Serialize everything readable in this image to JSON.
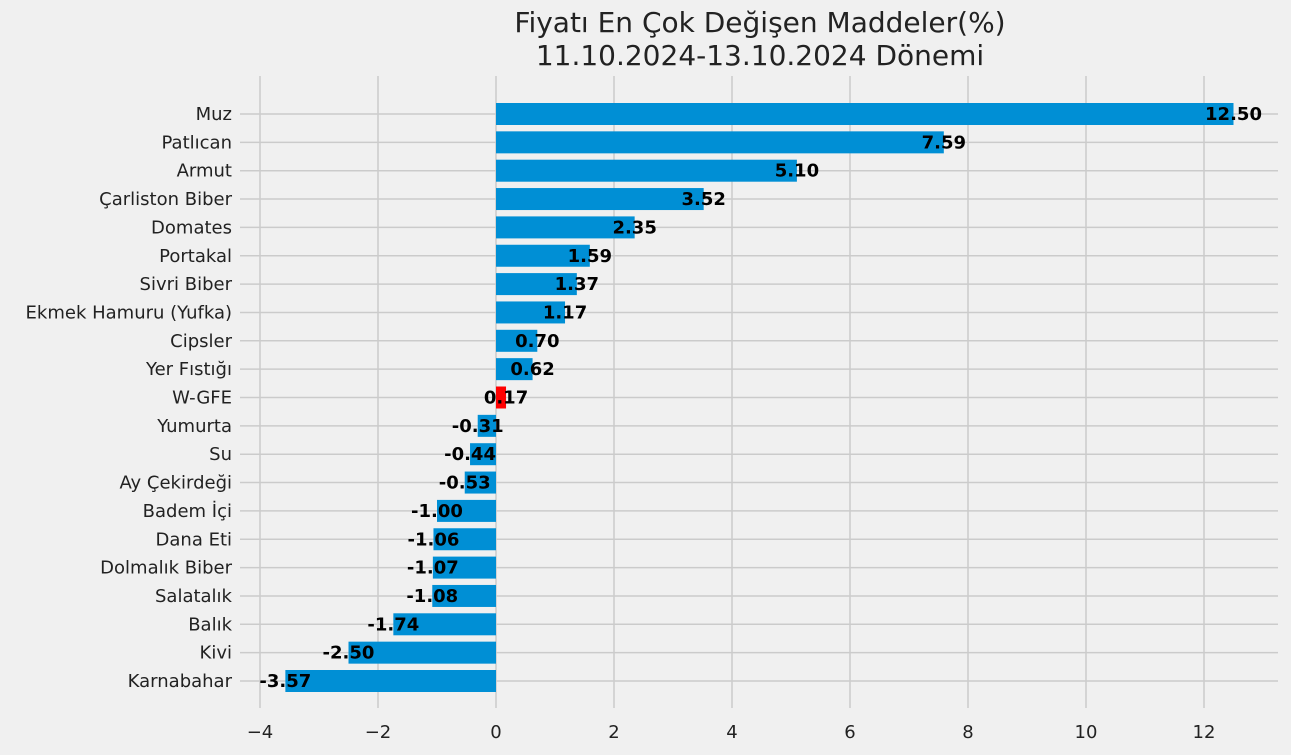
{
  "chart_data": {
    "type": "bar",
    "orientation": "horizontal",
    "title": "Fiyatı En Çok Değişen Maddeler(%)",
    "subtitle": "11.10.2024-13.10.2024 Dönemi",
    "categories": [
      "Muz",
      "Patlıcan",
      "Armut",
      "Çarliston Biber",
      "Domates",
      "Portakal",
      "Sivri Biber",
      "Ekmek Hamuru (Yufka)",
      "Cipsler",
      "Yer Fıstığı",
      "W-GFE",
      "Yumurta",
      "Su",
      "Ay Çekirdeği",
      "Badem İçi",
      "Dana Eti",
      "Dolmalık Biber",
      "Salatalık",
      "Balık",
      "Kivi",
      "Karnabahar"
    ],
    "values": [
      12.5,
      7.59,
      5.1,
      3.52,
      2.35,
      1.59,
      1.37,
      1.17,
      0.7,
      0.62,
      0.17,
      -0.31,
      -0.44,
      -0.53,
      -1.0,
      -1.06,
      -1.07,
      -1.08,
      -1.74,
      -2.5,
      -3.57
    ],
    "data_labels": [
      "12.50",
      "7.59",
      "5.10",
      "3.52",
      "2.35",
      "1.59",
      "1.37",
      "1.17",
      "0.70",
      "0.62",
      "0.17",
      "-0.31",
      "-0.44",
      "-0.53",
      "-1.00",
      "-1.06",
      "-1.07",
      "-1.08",
      "-1.74",
      "-2.50",
      "-3.57"
    ],
    "xticks": [
      -4,
      -2,
      0,
      2,
      4,
      6,
      8,
      10,
      12
    ],
    "xtick_labels": [
      "−4",
      "−2",
      "0",
      "2",
      "4",
      "6",
      "8",
      "10",
      "12"
    ],
    "xlim": [
      -4.2,
      13.3
    ],
    "grid": true,
    "colors": {
      "default": "#008fd5",
      "highlight": "#ff0000",
      "highlight_category": "W-GFE",
      "background": "#f0f0f0",
      "grid": "#cbcbcb"
    },
    "xlabel": "",
    "ylabel": ""
  }
}
